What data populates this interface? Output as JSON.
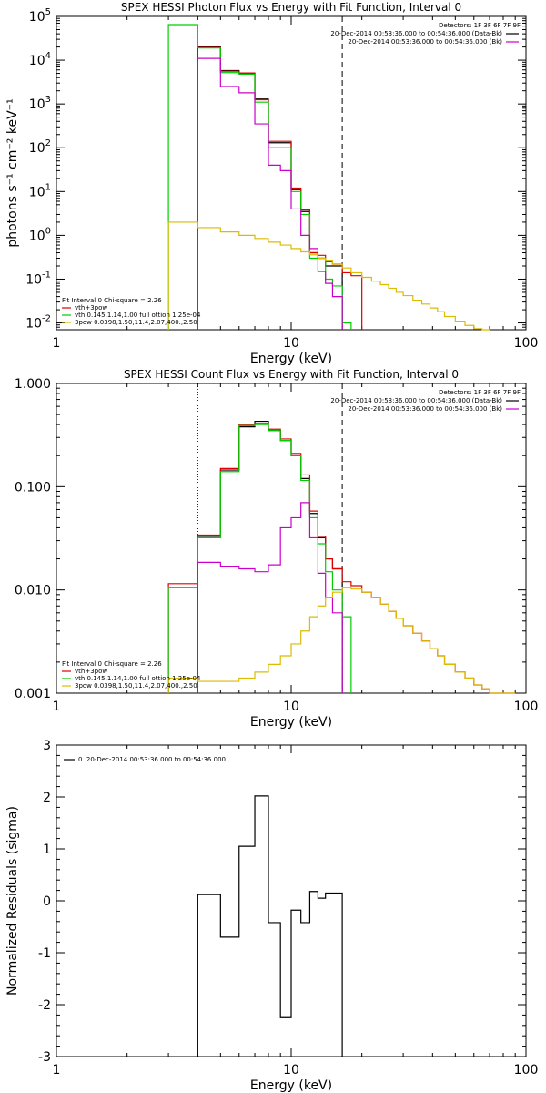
{
  "chart_data": [
    {
      "type": "line",
      "title": "SPEX HESSI Photon Flux vs Energy with Fit Function, Interval 0",
      "xlabel": "Energy (keV)",
      "ylabel": "photons s⁻¹ cm⁻² keV⁻¹",
      "xscale": "log",
      "yscale": "log",
      "xlim": [
        1,
        100
      ],
      "ylim": [
        0.007,
        100000
      ],
      "x_tick_labels": [
        "1",
        "10",
        "100"
      ],
      "y_tick_labels": [
        {
          "base": "10",
          "exp": "5"
        },
        {
          "base": "10",
          "exp": "4"
        },
        {
          "base": "10",
          "exp": "3"
        },
        {
          "base": "10",
          "exp": "2"
        },
        {
          "base": "10",
          "exp": "1"
        },
        {
          "base": "10",
          "exp": "0"
        },
        {
          "base": "10",
          "exp": "-1"
        },
        {
          "base": "10",
          "exp": "-2"
        }
      ],
      "legend": {
        "title": "Detectors: 1F 3F 6F 7F 9F",
        "placement": "top-right",
        "entries": [
          {
            "label": "20-Dec-2014 00:53:36.000 to 00:54:36.000 (Data-Bk)",
            "color": "#000000"
          },
          {
            "label": "20-Dec-2014 00:53:36.000 to 00:54:36.000 (Bk)",
            "color": "#cc00cc"
          }
        ]
      },
      "fit_legend": {
        "header": "Fit Interval 0   Chi-square = 2.26",
        "entries": [
          {
            "label": "vth+3pow",
            "color": "#dd0000"
          },
          {
            "label": "vth 0.145,1.14,1.00  full ottion 1.25e-04",
            "color": "#00cc00"
          },
          {
            "label": "3pow 0.0398,1.50,11.4,2.07,400.,2.50",
            "color": "#ddbb00"
          }
        ]
      },
      "vlines": [
        {
          "x": 4,
          "style": "solid",
          "color": "#cc00cc"
        },
        {
          "x": 16.5,
          "style": "solid",
          "color": "#cc00cc"
        },
        {
          "x": 16.5,
          "style": "dashed",
          "color": "#000000"
        }
      ],
      "series": [
        {
          "name": "Data-Bk",
          "color": "#000000",
          "edges": [
            4,
            5,
            6,
            7,
            8,
            9,
            10,
            11,
            12,
            13,
            14,
            15,
            16.5
          ],
          "values": [
            20000,
            5800,
            5000,
            1300,
            130,
            130,
            11,
            3.5,
            0.4,
            0.3,
            0.2,
            0.2
          ]
        },
        {
          "name": "vth+3pow",
          "color": "#dd0000",
          "edges": [
            4,
            5,
            6,
            7,
            8,
            9,
            10,
            11,
            12,
            13,
            14,
            15,
            16.5,
            18,
            20
          ],
          "values": [
            19500,
            5600,
            5100,
            1250,
            140,
            140,
            12,
            3.8,
            0.4,
            0.35,
            0.25,
            0.22,
            0.14,
            0.12
          ]
        },
        {
          "name": "vth",
          "color": "#00cc00",
          "edges": [
            3,
            4,
            5,
            6,
            7,
            8,
            9,
            10,
            11,
            12,
            13,
            14,
            15,
            16.5,
            18
          ],
          "values": [
            65000,
            19000,
            5200,
            4800,
            1100,
            100,
            100,
            10,
            3,
            0.3,
            0.3,
            0.1,
            0.07,
            0.01
          ]
        },
        {
          "name": "Bk",
          "color": "#cc00cc",
          "edges": [
            4,
            5,
            6,
            7,
            8,
            9,
            10,
            11,
            12,
            13,
            14,
            15,
            16.5
          ],
          "values": [
            11000,
            2500,
            1800,
            350,
            40,
            30,
            4,
            1,
            0.5,
            0.15,
            0.08,
            0.04
          ]
        },
        {
          "name": "3pow",
          "color": "#ddbb00",
          "edges": [
            3,
            4,
            5,
            6,
            7,
            8,
            9,
            10,
            11,
            12,
            13,
            14,
            15,
            16.5,
            18,
            20,
            22,
            24,
            26,
            28,
            30,
            33,
            36,
            39,
            42,
            45,
            50,
            55,
            60,
            65,
            70
          ],
          "values": [
            2.0,
            1.5,
            1.2,
            1.0,
            0.85,
            0.7,
            0.6,
            0.5,
            0.42,
            0.36,
            0.3,
            0.26,
            0.22,
            0.18,
            0.14,
            0.11,
            0.09,
            0.075,
            0.062,
            0.05,
            0.042,
            0.033,
            0.027,
            0.022,
            0.018,
            0.014,
            0.011,
            0.0088,
            0.0074,
            0.0066
          ]
        }
      ]
    },
    {
      "type": "line",
      "title": "SPEX HESSI Count Flux vs Energy with Fit Function, Interval 0",
      "xlabel": "Energy (keV)",
      "ylabel": "",
      "xscale": "log",
      "yscale": "log",
      "xlim": [
        1,
        100
      ],
      "ylim": [
        0.001,
        1.0
      ],
      "x_tick_labels": [
        "1",
        "10",
        "100"
      ],
      "y_tick_labels": [
        "1.000",
        "0.100",
        "0.010",
        "0.001"
      ],
      "legend": {
        "title": "Detectors: 1F 3F 6F 7F 9F",
        "placement": "top-right",
        "entries": [
          {
            "label": "20-Dec-2014 00:53:36.000 to 00:54:36.000 (Data-Bk)",
            "color": "#000000"
          },
          {
            "label": "20-Dec-2014 00:53:36.000 to 00:54:36.000 (Bk)",
            "color": "#cc00cc"
          }
        ]
      },
      "fit_legend": {
        "header": "Fit Interval 0   Chi-square = 2.26",
        "entries": [
          {
            "label": "vth+3pow",
            "color": "#dd0000"
          },
          {
            "label": "vth 0.145,1.14,1.00  full ottion 1.25e-04",
            "color": "#00cc00"
          },
          {
            "label": "3pow 0.0398,1.50,11.4,2.07,400.,2.50",
            "color": "#ddbb00"
          }
        ]
      },
      "vlines": [
        {
          "x": 4,
          "style": "dotted",
          "color": "#000000"
        },
        {
          "x": 4,
          "style": "solid",
          "color": "#cc00cc"
        },
        {
          "x": 16.5,
          "style": "solid",
          "color": "#cc00cc"
        },
        {
          "x": 16.5,
          "style": "dashed",
          "color": "#000000"
        }
      ],
      "series": [
        {
          "name": "Data-Bk",
          "color": "#000000",
          "edges": [
            4,
            5,
            6,
            7,
            8,
            9,
            10,
            11,
            12,
            13,
            14,
            15,
            16.5
          ],
          "values": [
            0.033,
            0.145,
            0.38,
            0.43,
            0.35,
            0.28,
            0.2,
            0.12,
            0.055,
            0.032,
            0.02,
            0.016
          ]
        },
        {
          "name": "vth+3pow",
          "color": "#dd0000",
          "edges": [
            3,
            4,
            5,
            6,
            7,
            8,
            9,
            10,
            11,
            12,
            13,
            14,
            15,
            16.5,
            18,
            20,
            22,
            24,
            26,
            28,
            30,
            33,
            36,
            39,
            42,
            45,
            50,
            55,
            60,
            65,
            70,
            80,
            90
          ],
          "values": [
            0.0115,
            0.034,
            0.15,
            0.4,
            0.41,
            0.36,
            0.29,
            0.21,
            0.13,
            0.058,
            0.033,
            0.02,
            0.016,
            0.012,
            0.011,
            0.0095,
            0.0085,
            0.0073,
            0.0062,
            0.0053,
            0.0045,
            0.0038,
            0.0032,
            0.0027,
            0.0023,
            0.0019,
            0.0016,
            0.0014,
            0.0012,
            0.0011,
            0.001,
            0.0009
          ]
        },
        {
          "name": "vth",
          "color": "#00cc00",
          "edges": [
            3,
            4,
            5,
            6,
            7,
            8,
            9,
            10,
            11,
            12,
            13,
            14,
            15,
            16.5,
            18
          ],
          "values": [
            0.0105,
            0.032,
            0.14,
            0.39,
            0.4,
            0.35,
            0.28,
            0.2,
            0.115,
            0.05,
            0.028,
            0.015,
            0.01,
            0.0055,
            0.0008
          ]
        },
        {
          "name": "Bk",
          "color": "#cc00cc",
          "edges": [
            4,
            5,
            6,
            7,
            8,
            9,
            10,
            11,
            12,
            13,
            14,
            15,
            16.5
          ],
          "values": [
            0.0185,
            0.017,
            0.016,
            0.015,
            0.0175,
            0.04,
            0.05,
            0.07,
            0.032,
            0.0145,
            0.0085,
            0.006
          ]
        },
        {
          "name": "3pow",
          "color": "#ddbb00",
          "edges": [
            3,
            4,
            5,
            6,
            7,
            8,
            9,
            10,
            11,
            12,
            13,
            14,
            15,
            16.5,
            18,
            20,
            22,
            24,
            26,
            28,
            30,
            33,
            36,
            39,
            42,
            45,
            50,
            55,
            60,
            65,
            70,
            80,
            90
          ],
          "values": [
            0.0014,
            0.0013,
            0.0013,
            0.0014,
            0.0016,
            0.0019,
            0.0023,
            0.003,
            0.004,
            0.0055,
            0.007,
            0.0085,
            0.0095,
            0.0105,
            0.0102,
            0.0095,
            0.0085,
            0.0073,
            0.0062,
            0.0053,
            0.0045,
            0.0038,
            0.0032,
            0.0027,
            0.0023,
            0.0019,
            0.0016,
            0.0014,
            0.0012,
            0.0011,
            0.001,
            0.0009
          ]
        }
      ]
    },
    {
      "type": "line",
      "title": "",
      "xlabel": "Energy (keV)",
      "ylabel": "Normalized Residuals (sigma)",
      "xscale": "log",
      "yscale": "linear",
      "xlim": [
        1,
        100
      ],
      "ylim": [
        -3,
        3
      ],
      "x_tick_labels": [
        "1",
        "10",
        "100"
      ],
      "y_tick_labels": [
        "3",
        "2",
        "1",
        "0",
        "-1",
        "-2",
        "-3"
      ],
      "legend": {
        "placement": "top-left",
        "entries": [
          {
            "label": "0. 20-Dec-2014 00:53:36.000 to 00:54:36.000",
            "color": "#000000"
          }
        ]
      },
      "series": [
        {
          "name": "0. 20-Dec-2014 00:53:36.000 to 00:54:36.000",
          "color": "#000000",
          "edges": [
            4,
            5,
            6,
            7,
            8,
            9,
            10,
            11,
            12,
            13,
            14,
            15,
            16.5
          ],
          "values": [
            0.12,
            -0.7,
            1.05,
            2.02,
            -0.42,
            -2.25,
            -0.18,
            -0.42,
            0.18,
            0.05,
            0.15,
            0.15
          ]
        }
      ]
    }
  ]
}
